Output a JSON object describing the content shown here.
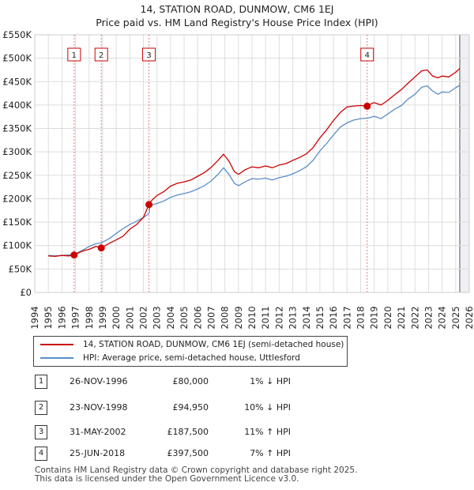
{
  "chart_data": {
    "type": "line",
    "title": "14, STATION ROAD, DUNMOW, CM6 1EJ",
    "subtitle": "Price paid vs. HM Land Registry's House Price Index (HPI)",
    "xlim": [
      1994,
      2026
    ],
    "ylim": [
      0,
      550000
    ],
    "x_ticks": [
      "1994",
      "1995",
      "1996",
      "1997",
      "1998",
      "1999",
      "2000",
      "2001",
      "2002",
      "2003",
      "2004",
      "2005",
      "2006",
      "2007",
      "2008",
      "2009",
      "2010",
      "2011",
      "2012",
      "2013",
      "2014",
      "2015",
      "2016",
      "2017",
      "2018",
      "2019",
      "2020",
      "2021",
      "2022",
      "2023",
      "2024",
      "2025",
      "2026"
    ],
    "y_ticks": [
      {
        "value": 0,
        "label": "£0"
      },
      {
        "value": 50000,
        "label": "£50K"
      },
      {
        "value": 100000,
        "label": "£100K"
      },
      {
        "value": 150000,
        "label": "£150K"
      },
      {
        "value": 200000,
        "label": "£200K"
      },
      {
        "value": 250000,
        "label": "£250K"
      },
      {
        "value": 300000,
        "label": "£300K"
      },
      {
        "value": 350000,
        "label": "£350K"
      },
      {
        "value": 400000,
        "label": "£400K"
      },
      {
        "value": 450000,
        "label": "£450K"
      },
      {
        "value": 500000,
        "label": "£500K"
      },
      {
        "value": 550000,
        "label": "£550K"
      }
    ],
    "grid": true,
    "series": [
      {
        "name": "14, STATION ROAD, DUNMOW, CM6 1EJ (semi-detached house)",
        "color": "#cc0000",
        "x": [
          1995.0,
          1995.5,
          1996.0,
          1996.5,
          1996.9,
          1997.5,
          1998.0,
          1998.5,
          1998.9,
          1999.5,
          2000.0,
          2000.5,
          2001.0,
          2001.5,
          2002.0,
          2002.41,
          2002.5,
          2003.0,
          2003.5,
          2004.0,
          2004.5,
          2005.0,
          2005.5,
          2006.0,
          2006.5,
          2007.0,
          2007.5,
          2007.9,
          2008.3,
          2008.7,
          2009.0,
          2009.5,
          2010.0,
          2010.5,
          2011.0,
          2011.5,
          2012.0,
          2012.5,
          2013.0,
          2013.5,
          2014.0,
          2014.5,
          2015.0,
          2015.5,
          2016.0,
          2016.5,
          2017.0,
          2017.5,
          2018.0,
          2018.48,
          2018.8,
          2019.0,
          2019.5,
          2020.0,
          2020.5,
          2021.0,
          2021.5,
          2022.0,
          2022.5,
          2022.9,
          2023.3,
          2023.7,
          2024.0,
          2024.5,
          2025.0,
          2025.3
        ],
        "y": [
          78000,
          77000,
          79000,
          78000,
          80000,
          88000,
          92000,
          98000,
          94950,
          105000,
          112000,
          120000,
          135000,
          145000,
          160000,
          187500,
          193000,
          207000,
          215000,
          227000,
          233000,
          236000,
          240000,
          248000,
          256000,
          267000,
          282000,
          295000,
          280000,
          258000,
          252000,
          262000,
          268000,
          266000,
          270000,
          266000,
          272000,
          275000,
          282000,
          288000,
          296000,
          309000,
          330000,
          347000,
          367000,
          384000,
          396000,
          398000,
          399000,
          397500,
          403000,
          405000,
          400000,
          410000,
          422000,
          433000,
          447000,
          460000,
          473000,
          475000,
          462000,
          458000,
          462000,
          460000,
          470000,
          478000
        ]
      },
      {
        "name": "HPI: Average price, semi-detached house, Uttlesford",
        "color": "#5b8ec7",
        "x": [
          1995.0,
          1995.5,
          1996.0,
          1996.5,
          1996.9,
          1997.5,
          1998.0,
          1998.5,
          1998.9,
          1999.5,
          2000.0,
          2000.5,
          2001.0,
          2001.5,
          2002.0,
          2002.41,
          2002.5,
          2003.0,
          2003.5,
          2004.0,
          2004.5,
          2005.0,
          2005.5,
          2006.0,
          2006.5,
          2007.0,
          2007.5,
          2007.9,
          2008.3,
          2008.7,
          2009.0,
          2009.5,
          2010.0,
          2010.5,
          2011.0,
          2011.5,
          2012.0,
          2012.5,
          2013.0,
          2013.5,
          2014.0,
          2014.5,
          2015.0,
          2015.5,
          2016.0,
          2016.5,
          2017.0,
          2017.5,
          2018.0,
          2018.48,
          2018.8,
          2019.0,
          2019.5,
          2020.0,
          2020.5,
          2021.0,
          2021.5,
          2022.0,
          2022.5,
          2022.9,
          2023.3,
          2023.7,
          2024.0,
          2024.5,
          2025.0,
          2025.3
        ],
        "y": [
          79000,
          78000,
          79000,
          80000,
          81000,
          90000,
          98000,
          104000,
          106000,
          115000,
          126000,
          136000,
          145000,
          152000,
          160000,
          168000,
          185000,
          190000,
          195000,
          203000,
          208000,
          211000,
          215000,
          221000,
          228000,
          238000,
          252000,
          266000,
          252000,
          233000,
          228000,
          236000,
          243000,
          242000,
          244000,
          240000,
          245000,
          248000,
          253000,
          260000,
          268000,
          282000,
          302000,
          318000,
          336000,
          353000,
          362000,
          368000,
          371000,
          372000,
          374000,
          376000,
          371000,
          381000,
          391000,
          399000,
          413000,
          423000,
          438000,
          441000,
          430000,
          423000,
          428000,
          427000,
          437000,
          442000
        ]
      }
    ],
    "sales": [
      {
        "id": "1",
        "x": 1996.9,
        "y": 80000,
        "date": "26-NOV-1996",
        "price": "£80,000",
        "hpi": "1% ↓ HPI"
      },
      {
        "id": "2",
        "x": 1998.9,
        "y": 94950,
        "date": "23-NOV-1998",
        "price": "£94,950",
        "hpi": "10% ↓ HPI"
      },
      {
        "id": "3",
        "x": 2002.41,
        "y": 187500,
        "date": "31-MAY-2002",
        "price": "£187,500",
        "hpi": "11% ↑ HPI"
      },
      {
        "id": "4",
        "x": 2018.48,
        "y": 397500,
        "date": "25-JUN-2018",
        "price": "£397,500",
        "hpi": "7% ↑ HPI"
      }
    ]
  },
  "legend": {
    "property_label": "14, STATION ROAD, DUNMOW, CM6 1EJ (semi-detached house)",
    "hpi_label": "HPI: Average price, semi-detached house, Uttlesford"
  },
  "table": [
    {
      "num": "1",
      "date": "26-NOV-1996",
      "price": "£80,000",
      "hpi": "1% ↓ HPI"
    },
    {
      "num": "2",
      "date": "23-NOV-1998",
      "price": "£94,950",
      "hpi": "10% ↓ HPI"
    },
    {
      "num": "3",
      "date": "31-MAY-2002",
      "price": "£187,500",
      "hpi": "11% ↑ HPI"
    },
    {
      "num": "4",
      "date": "25-JUN-2018",
      "price": "£397,500",
      "hpi": "7% ↑ HPI"
    }
  ],
  "footer": {
    "line1": "Contains HM Land Registry data © Crown copyright and database right 2025.",
    "line2": "This data is licensed under the Open Government Licence v3.0."
  }
}
